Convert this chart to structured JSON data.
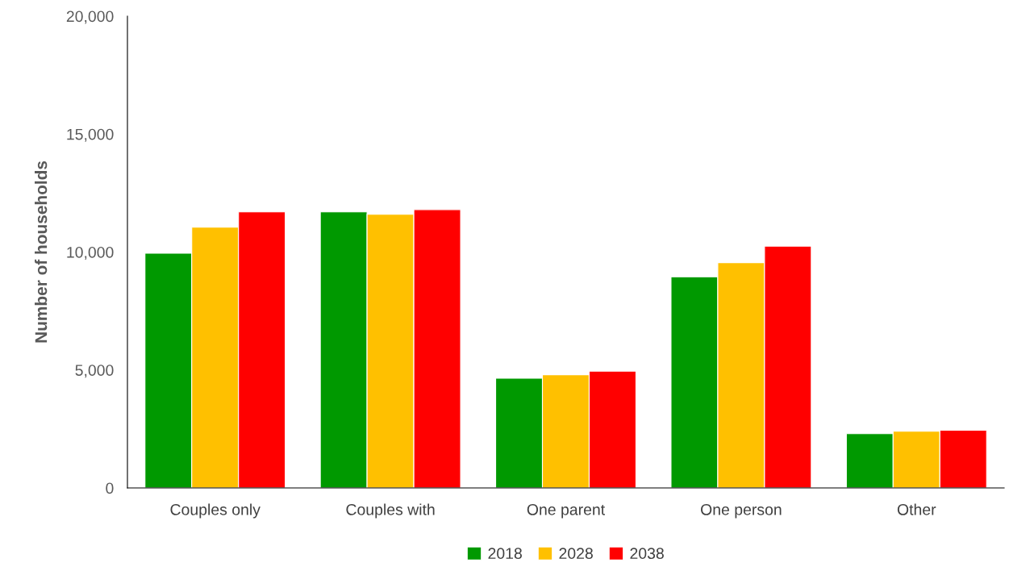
{
  "chart_data": {
    "type": "bar",
    "ylabel": "Number of households",
    "categories": [
      "Couples only",
      "Couples with",
      "One parent",
      "One person",
      "Other"
    ],
    "series": [
      {
        "name": "2018",
        "color": "#009900",
        "values": [
          9950,
          11700,
          4650,
          8950,
          2300
        ]
      },
      {
        "name": "2028",
        "color": "#ffc000",
        "values": [
          11050,
          11600,
          4800,
          9550,
          2400
        ]
      },
      {
        "name": "2038",
        "color": "#ff0000",
        "values": [
          11700,
          11800,
          4950,
          10250,
          2450
        ]
      }
    ],
    "ylim": [
      0,
      20000
    ],
    "yticks": [
      {
        "value": 0,
        "label": "0"
      },
      {
        "value": 5000,
        "label": "5,000"
      },
      {
        "value": 10000,
        "label": "10,000"
      },
      {
        "value": 15000,
        "label": "15,000"
      },
      {
        "value": 20000,
        "label": "20,000"
      }
    ],
    "grid": false,
    "legend": "bottom"
  }
}
